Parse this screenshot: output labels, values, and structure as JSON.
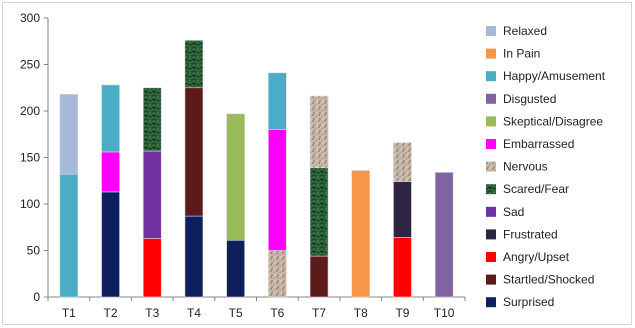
{
  "chart_data": {
    "type": "bar",
    "stacked": true,
    "title": "",
    "xlabel": "",
    "ylabel": "",
    "ylim": [
      0,
      300
    ],
    "yticks": [
      0,
      50,
      100,
      150,
      200,
      250,
      300
    ],
    "grid": false,
    "legend_position": "right",
    "categories": [
      "T1",
      "T2",
      "T3",
      "T4",
      "T5",
      "T6",
      "T7",
      "T8",
      "T9",
      "T10"
    ],
    "series": [
      {
        "name": "Surprised",
        "color": "#0d1f5c",
        "values": [
          0,
          113,
          0,
          87,
          61,
          0,
          0,
          0,
          0,
          0
        ]
      },
      {
        "name": "Startled/Shocked",
        "color": "#5c1a1a",
        "values": [
          0,
          0,
          0,
          138,
          0,
          0,
          44,
          0,
          0,
          0
        ]
      },
      {
        "name": "Angry/Upset",
        "color": "#ff0000",
        "values": [
          0,
          0,
          63,
          0,
          0,
          0,
          0,
          0,
          64,
          0
        ]
      },
      {
        "name": "Frustrated",
        "color": "#2e2545",
        "values": [
          0,
          0,
          0,
          0,
          0,
          0,
          0,
          0,
          60,
          0
        ]
      },
      {
        "name": "Sad",
        "color": "#7030a0",
        "values": [
          0,
          0,
          94,
          0,
          0,
          0,
          0,
          0,
          0,
          0
        ]
      },
      {
        "name": "Scared/Fear",
        "color": "#1e4d2b",
        "pattern": "marble",
        "values": [
          0,
          0,
          68,
          51,
          0,
          0,
          95,
          0,
          0,
          0
        ]
      },
      {
        "name": "Nervous",
        "color": "#c9b8a8",
        "pattern": "speckle",
        "values": [
          0,
          0,
          0,
          0,
          0,
          50,
          77,
          0,
          42,
          0
        ]
      },
      {
        "name": "Embarrassed",
        "color": "#ff00ff",
        "values": [
          0,
          43,
          0,
          0,
          0,
          130,
          0,
          0,
          0,
          0
        ]
      },
      {
        "name": "Skeptical/Disagree",
        "color": "#9bbb59",
        "values": [
          0,
          0,
          0,
          0,
          136,
          0,
          0,
          0,
          0,
          0
        ]
      },
      {
        "name": "Disgusted",
        "color": "#8064a2",
        "values": [
          0,
          0,
          0,
          0,
          0,
          0,
          0,
          0,
          0,
          134
        ]
      },
      {
        "name": "Happy/Amusement",
        "color": "#4bacc6",
        "values": [
          132,
          72,
          0,
          0,
          0,
          61,
          0,
          0,
          0,
          0
        ]
      },
      {
        "name": "In Pain",
        "color": "#f79646",
        "values": [
          0,
          0,
          0,
          0,
          0,
          0,
          0,
          136,
          0,
          0
        ]
      },
      {
        "name": "Relaxed",
        "color": "#a6b9d9",
        "values": [
          86,
          0,
          0,
          0,
          0,
          0,
          0,
          0,
          0,
          0
        ]
      }
    ],
    "legend_order": [
      "Relaxed",
      "In Pain",
      "Happy/Amusement",
      "Disgusted",
      "Skeptical/Disagree",
      "Embarrassed",
      "Nervous",
      "Scared/Fear",
      "Sad",
      "Frustrated",
      "Angry/Upset",
      "Startled/Shocked",
      "Surprised"
    ]
  }
}
